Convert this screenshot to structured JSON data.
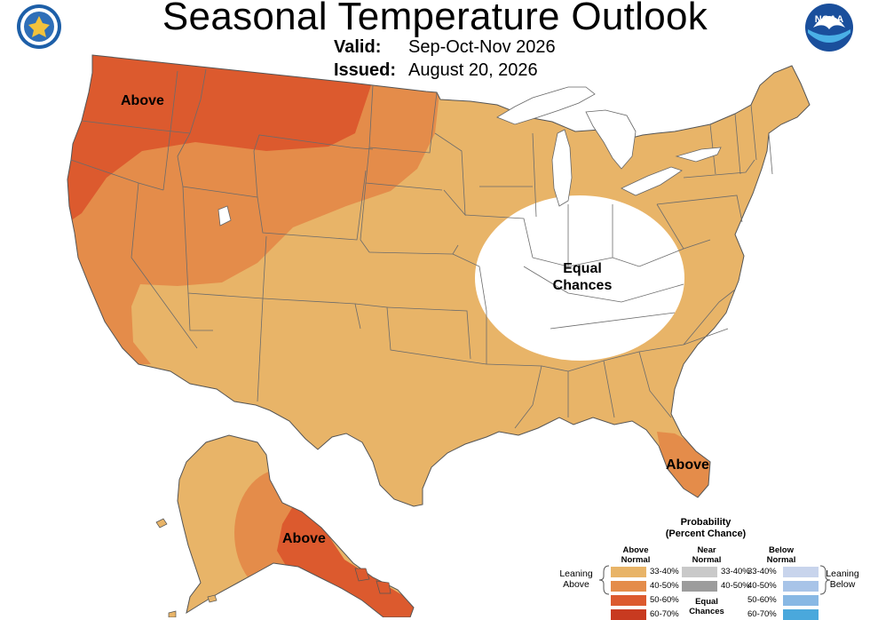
{
  "header": {
    "title": "Seasonal Temperature Outlook",
    "valid_label": "Valid:",
    "valid_value": "Sep-Oct-Nov 2026",
    "issued_label": "Issued:",
    "issued_value": "August 20, 2026"
  },
  "logos": {
    "left": "doc-seal-icon",
    "right": "noaa-logo-icon",
    "noaa_text": "NOAA"
  },
  "map_labels": {
    "northwest": "Above",
    "ohio_valley_line1": "Equal",
    "ohio_valley_line2": "Chances",
    "florida": "Above",
    "alaska": "Above"
  },
  "colors": {
    "above_33_40": "#e8b468",
    "above_40_50": "#e48c4a",
    "above_50_60": "#dc5a2e",
    "above_60_70": "#c83a20",
    "near_33_40": "#c9c9c9",
    "near_40_50": "#9c9c9c",
    "below_33_40": "#c8d4ec",
    "below_40_50": "#a8c4e8",
    "below_50_60": "#88b8e4",
    "below_60_70": "#4aa8dc",
    "equal_chances": "#ffffff",
    "borders": "#555555"
  },
  "legend": {
    "title_line1": "Probability",
    "title_line2": "(Percent Chance)",
    "above_header_1": "Above",
    "above_header_2": "Normal",
    "near_header_1": "Near",
    "near_header_2": "Normal",
    "below_header_1": "Below",
    "below_header_2": "Normal",
    "equal_1": "Equal",
    "equal_2": "Chances",
    "leaning_above_1": "Leaning",
    "leaning_above_2": "Above",
    "leaning_below_1": "Leaning",
    "leaning_below_2": "Below",
    "above_rows": [
      "33-40%",
      "40-50%",
      "50-60%",
      "60-70%"
    ],
    "near_rows": [
      "33-40%",
      "40-50%"
    ],
    "below_rows": [
      "33-40%",
      "40-50%",
      "50-60%",
      "60-70%"
    ]
  }
}
